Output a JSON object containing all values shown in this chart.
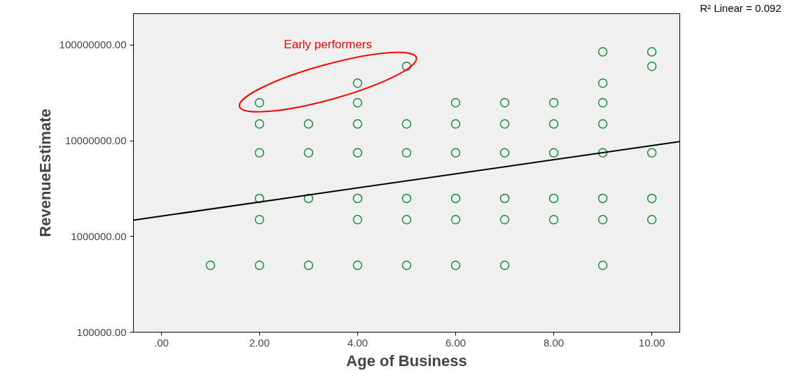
{
  "chart_data": {
    "type": "scatter",
    "xlabel": "Age of Business",
    "ylabel": "RevenueEstimate",
    "log": "y",
    "grid": false,
    "xlim": [
      -0.57,
      10.57
    ],
    "ylim": [
      100000,
      213000000
    ],
    "xticks": [
      {
        "value": 0,
        "label": ".00"
      },
      {
        "value": 2,
        "label": "2.00"
      },
      {
        "value": 4,
        "label": "4.00"
      },
      {
        "value": 6,
        "label": "6.00"
      },
      {
        "value": 8,
        "label": "8.00"
      },
      {
        "value": 10,
        "label": "10.00"
      }
    ],
    "yticks": [
      {
        "value": 100000,
        "label": "100000.00"
      },
      {
        "value": 1000000,
        "label": "1000000.00"
      },
      {
        "value": 10000000,
        "label": "10000000.00"
      },
      {
        "value": 100000000,
        "label": "100000000.00"
      }
    ],
    "series": [
      {
        "marker": "circle",
        "color": "#1a8c3c",
        "x": [
          1,
          2,
          2,
          2,
          2,
          2,
          2,
          3,
          3,
          3,
          3,
          4,
          4,
          4,
          4,
          4,
          4,
          4,
          5,
          5,
          5,
          5,
          5,
          5,
          6,
          6,
          6,
          6,
          6,
          6,
          7,
          7,
          7,
          7,
          7,
          7,
          8,
          8,
          8,
          8,
          8,
          9,
          9,
          9,
          9,
          9,
          9,
          9,
          9,
          10,
          10,
          10,
          10,
          10
        ],
        "values": [
          500000,
          25000000,
          15000000,
          7500000,
          2500000,
          1500000,
          500000,
          15000000,
          7500000,
          2500000,
          500000,
          40000000,
          25000000,
          15000000,
          7500000,
          2500000,
          1500000,
          500000,
          60000000,
          15000000,
          7500000,
          2500000,
          1500000,
          500000,
          25000000,
          15000000,
          7500000,
          2500000,
          1500000,
          500000,
          25000000,
          15000000,
          7500000,
          2500000,
          1500000,
          500000,
          25000000,
          15000000,
          7500000,
          2500000,
          1500000,
          85000000,
          40000000,
          25000000,
          15000000,
          7500000,
          2500000,
          1500000,
          500000,
          85000000,
          60000000,
          7500000,
          2500000,
          1500000
        ]
      },
      {
        "type": "line",
        "color": "#000000",
        "x": [
          -0.57,
          10.57
        ],
        "values": [
          1480000,
          9800000
        ]
      }
    ],
    "annotations": [
      "Early performers",
      "R² Linear = 0.092"
    ]
  }
}
